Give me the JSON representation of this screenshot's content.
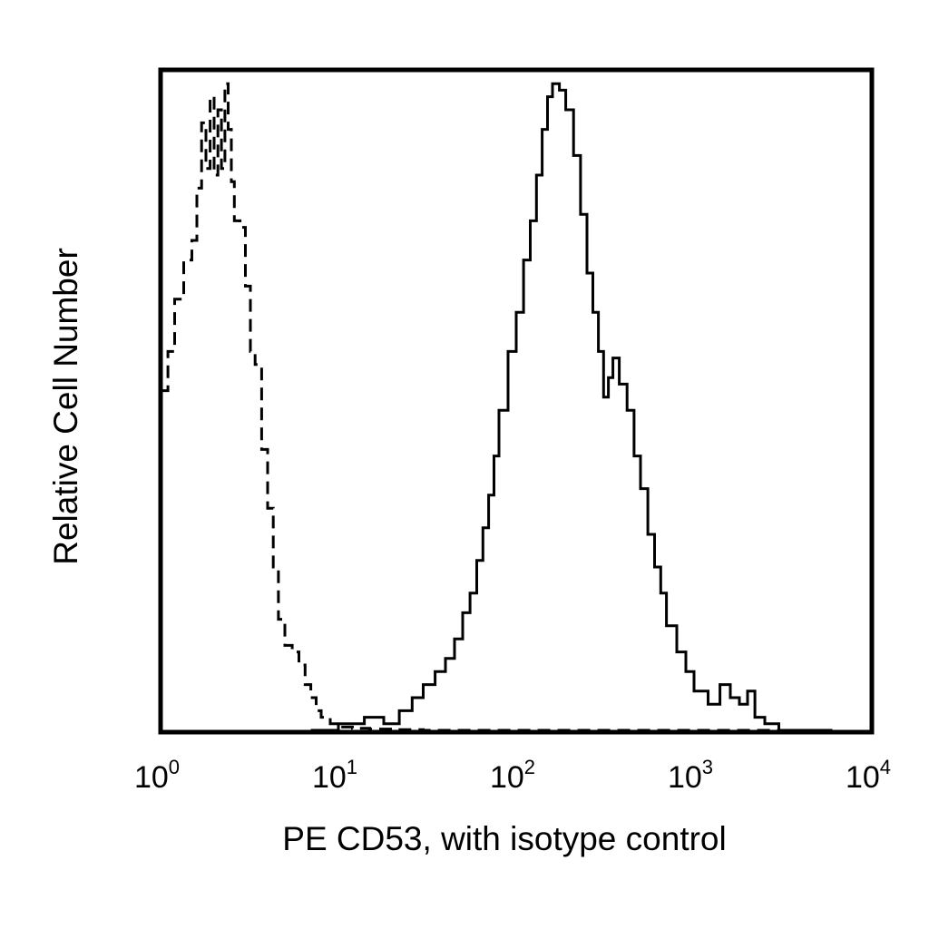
{
  "chart_data": {
    "type": "line",
    "title": "",
    "xlabel": "PE CD53, with isotype control",
    "ylabel": "Relative Cell Number",
    "x_scale": "log",
    "xlim": [
      1,
      10000
    ],
    "ylim": [
      0,
      1
    ],
    "grid": false,
    "x_ticks": [
      {
        "value": 1,
        "base": "10",
        "exp": "0"
      },
      {
        "value": 10,
        "base": "10",
        "exp": "1"
      },
      {
        "value": 100,
        "base": "10",
        "exp": "2"
      },
      {
        "value": 1000,
        "base": "10",
        "exp": "3"
      },
      {
        "value": 10000,
        "base": "10",
        "exp": "4"
      }
    ],
    "series": [
      {
        "style": "dashed",
        "color": "#000000",
        "x": [
          1.0,
          1.1,
          1.2,
          1.35,
          1.5,
          1.6,
          1.7,
          1.8,
          1.9,
          2.0,
          2.1,
          2.2,
          2.3,
          2.4,
          2.5,
          2.6,
          2.8,
          3.0,
          3.2,
          3.4,
          3.7,
          4.0,
          4.3,
          4.6,
          5.0,
          5.5,
          6.0,
          6.5,
          7.0,
          7.5,
          8.0,
          9.0,
          10.0,
          12.0,
          15.0,
          20.0,
          30.0,
          50.0,
          100.0,
          300.0,
          1000.0,
          3000.0,
          6000.0
        ],
        "y": [
          0.52,
          0.58,
          0.66,
          0.72,
          0.75,
          0.83,
          0.93,
          0.86,
          0.97,
          0.85,
          0.95,
          0.86,
          0.99,
          0.92,
          0.84,
          0.78,
          0.77,
          0.68,
          0.58,
          0.56,
          0.43,
          0.34,
          0.25,
          0.17,
          0.13,
          0.12,
          0.1,
          0.07,
          0.05,
          0.03,
          0.02,
          0.01,
          0.005,
          0.003,
          0.002,
          0.001,
          0.0,
          0.0,
          0.0,
          0.0,
          0.0,
          0.0,
          0.0
        ]
      },
      {
        "style": "solid",
        "color": "#000000",
        "x": [
          7.0,
          10.0,
          14.0,
          18.0,
          22.0,
          26.0,
          30.0,
          35.0,
          40.0,
          45.0,
          50.0,
          55.0,
          60.0,
          65.0,
          70.0,
          75.0,
          80.0,
          90.0,
          100.0,
          110.0,
          120.0,
          130.0,
          140.0,
          150.0,
          160.0,
          175.0,
          190.0,
          210.0,
          230.0,
          250.0,
          270.0,
          290.0,
          310.0,
          330.0,
          350.0,
          380.0,
          420.0,
          460.0,
          500.0,
          550.0,
          600.0,
          650.0,
          700.0,
          800.0,
          900.0,
          1000.0,
          1200.0,
          1400.0,
          1600.0,
          1800.0,
          2000.0,
          2200.0,
          2500.0,
          3000.0,
          4000.0,
          6000.0
        ],
        "y": [
          0.0,
          0.01,
          0.02,
          0.01,
          0.03,
          0.05,
          0.07,
          0.09,
          0.11,
          0.14,
          0.18,
          0.21,
          0.26,
          0.31,
          0.36,
          0.42,
          0.49,
          0.58,
          0.64,
          0.72,
          0.78,
          0.85,
          0.92,
          0.97,
          0.99,
          0.98,
          0.95,
          0.88,
          0.79,
          0.7,
          0.64,
          0.58,
          0.51,
          0.54,
          0.57,
          0.53,
          0.49,
          0.42,
          0.37,
          0.3,
          0.25,
          0.21,
          0.16,
          0.12,
          0.09,
          0.06,
          0.04,
          0.07,
          0.05,
          0.04,
          0.06,
          0.02,
          0.01,
          0.0,
          0.0,
          0.0
        ]
      }
    ]
  }
}
